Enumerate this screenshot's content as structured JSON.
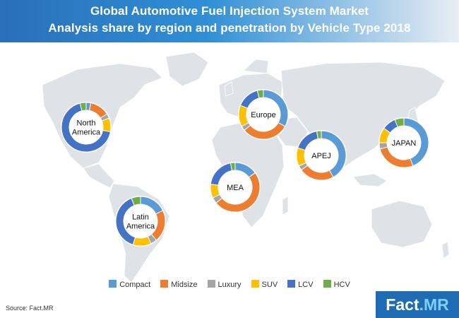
{
  "header": {
    "title_line1": "Global Automotive Fuel Injection System Market",
    "title_line2": "Analysis share by region and penetration by Vehicle Type 2018"
  },
  "source": "Source: Fact.MR",
  "brand": {
    "part1": "Fact",
    "part2": ".MR"
  },
  "colors": {
    "header_start": "#2a6fb8",
    "header_end": "#e9eef4",
    "map_land": "#dfe3e8",
    "Compact": "#5b9bd5",
    "Midsize": "#ed7d31",
    "Luxury": "#a5a5a5",
    "SUV": "#ffc000",
    "LCV": "#4472c4",
    "HCV": "#70ad47"
  },
  "chart_data": {
    "type": "pie",
    "variant": "donut",
    "categories": [
      "Compact",
      "Midsize",
      "Luxury",
      "SUV",
      "LCV",
      "HCV"
    ],
    "legend_position": "bottom",
    "regions": [
      {
        "label_lines": [
          "North",
          "America"
        ],
        "values": [
          3,
          13,
          3,
          9,
          68,
          4
        ]
      },
      {
        "label_lines": [
          "Europe"
        ],
        "values": [
          33,
          31,
          3,
          14,
          15,
          4
        ]
      },
      {
        "label_lines": [
          "APEJ"
        ],
        "values": [
          42,
          23,
          3,
          12,
          17,
          3
        ]
      },
      {
        "label_lines": [
          "JAPAN"
        ],
        "values": [
          44,
          27,
          4,
          10,
          9,
          6
        ]
      },
      {
        "label_lines": [
          "MEA"
        ],
        "values": [
          15,
          49,
          4,
          9,
          20,
          3
        ]
      },
      {
        "label_lines": [
          "Latin",
          "America"
        ],
        "values": [
          18,
          21,
          4,
          12,
          39,
          6
        ]
      }
    ]
  }
}
